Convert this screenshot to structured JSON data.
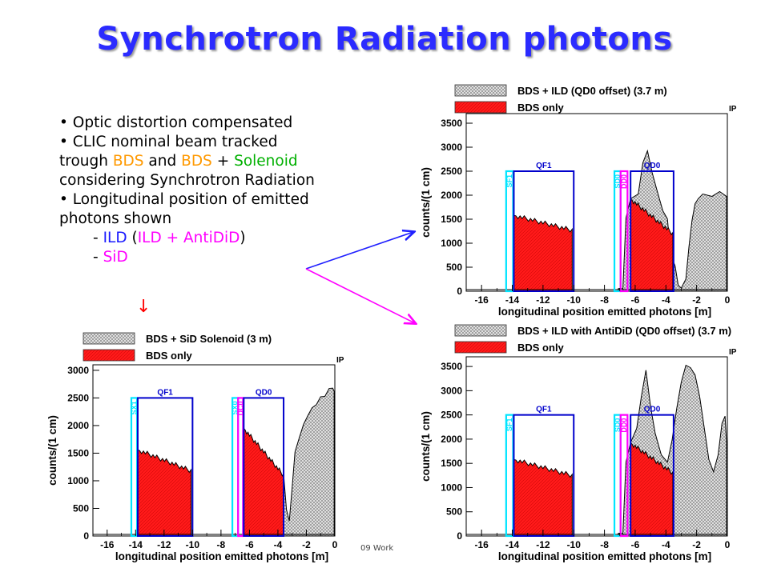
{
  "slide": {
    "title": "Synchrotron Radiation photons",
    "bullets": [
      {
        "text": "• Optic distortion compensated"
      },
      {
        "text": "• CLIC nominal beam tracked"
      },
      {
        "parts": [
          "trough ",
          "BDS",
          " and ",
          "BDS",
          " + ",
          "Solenoid"
        ]
      },
      {
        "text": "considering Synchrotron Radiation"
      },
      {
        "text": "• Longitudinal position of emitted"
      },
      {
        "text": "photons shown"
      },
      {
        "parts": [
          "- ",
          "ILD",
          " (",
          "ILD + AntiDiD",
          ")"
        ]
      },
      {
        "parts": [
          "- ",
          "SiD"
        ]
      }
    ],
    "down_arrow": "↓",
    "footer_fragment": "09 Work",
    "colors": {
      "title": "#2b2bff",
      "bds": "#ff9900",
      "solenoid": "#00b000",
      "ild": "#1a1aff",
      "antidid": "#ff00ff",
      "sid": "#ff00ff",
      "arrow_top": "#2020ff",
      "arrow_bottom": "#ff00ff",
      "hist_red": "#ff1a1a",
      "magnet_cyan": "#00e5ff",
      "magnet_blue": "#0000cc",
      "dd_magenta": "#ff00ff"
    }
  },
  "chart_data": [
    {
      "type": "histogram",
      "legend": [
        "BDS + ILD (QD0 offset) (3.7 m)",
        "BDS only"
      ],
      "xlabel": "longitudinal position emitted photons [m]",
      "ylabel": "counts/(1 cm)",
      "corner_label": "IP",
      "xlim": [
        -17,
        0
      ],
      "ylim": [
        0,
        3700
      ],
      "xticks": [
        -16,
        -14,
        -12,
        -10,
        -8,
        -6,
        -4,
        -2,
        0
      ],
      "yticks": [
        0,
        500,
        1000,
        1500,
        2000,
        2500,
        3000,
        3500
      ],
      "magnets": [
        {
          "name": "SF1",
          "x": [
            -14.4,
            -13.95
          ],
          "h": 2500,
          "style": "cyan"
        },
        {
          "name": "QF1",
          "x": [
            -13.9,
            -10.0
          ],
          "h": 2500,
          "style": "blue"
        },
        {
          "name": "SD0",
          "x": [
            -7.35,
            -6.95
          ],
          "h": 2500,
          "style": "cyan"
        },
        {
          "name": "DD0",
          "x": [
            -6.95,
            -6.5
          ],
          "h": 2500,
          "style": "magenta"
        },
        {
          "name": "QD0",
          "x": [
            -6.3,
            -3.5
          ],
          "h": 2500,
          "style": "blue"
        }
      ],
      "series": [
        {
          "name": "BDS only",
          "segments": [
            [
              [
                -13.9,
                1580
              ],
              [
                -10.1,
                1270
              ]
            ],
            [
              [
                -6.3,
                1920
              ],
              [
                -3.55,
                1200
              ]
            ]
          ]
        },
        {
          "name": "BDS + ILD (QD0 offset) (3.7 m)",
          "envelope": [
            [
              -7.1,
              30
            ],
            [
              -6.8,
              80
            ],
            [
              -6.6,
              1500
            ],
            [
              -6.3,
              1950
            ],
            [
              -5.8,
              2000
            ],
            [
              -5.5,
              2700
            ],
            [
              -5.2,
              2900
            ],
            [
              -4.9,
              2500
            ],
            [
              -4.6,
              2100
            ],
            [
              -4.2,
              1700
            ],
            [
              -3.9,
              1480
            ],
            [
              -3.7,
              800
            ],
            [
              -3.4,
              500
            ],
            [
              -3.2,
              150
            ],
            [
              -3.0,
              40
            ],
            [
              -2.7,
              280
            ],
            [
              -2.5,
              900
            ],
            [
              -2.3,
              1500
            ],
            [
              -2.1,
              1800
            ],
            [
              -1.9,
              1950
            ],
            [
              -1.6,
              2000
            ],
            [
              -1.0,
              2000
            ],
            [
              -0.5,
              2050
            ],
            [
              -0.05,
              2000
            ]
          ]
        }
      ]
    },
    {
      "type": "histogram",
      "legend": [
        "BDS + ILD with AntiDiD (QD0 offset) (3.7 m)",
        "BDS only"
      ],
      "xlabel": "longitudinal position emitted photons [m]",
      "ylabel": "counts/(1 cm)",
      "corner_label": "IP",
      "xlim": [
        -17,
        0
      ],
      "ylim": [
        0,
        3700
      ],
      "xticks": [
        -16,
        -14,
        -12,
        -10,
        -8,
        -6,
        -4,
        -2,
        0
      ],
      "yticks": [
        0,
        500,
        1000,
        1500,
        2000,
        2500,
        3000,
        3500
      ],
      "magnets": [
        {
          "name": "SF1",
          "x": [
            -14.4,
            -13.95
          ],
          "h": 2500,
          "style": "cyan"
        },
        {
          "name": "QF1",
          "x": [
            -13.9,
            -10.0
          ],
          "h": 2500,
          "style": "blue"
        },
        {
          "name": "SD0",
          "x": [
            -7.35,
            -6.95
          ],
          "h": 2500,
          "style": "cyan"
        },
        {
          "name": "DD0",
          "x": [
            -6.95,
            -6.5
          ],
          "h": 2500,
          "style": "magenta"
        },
        {
          "name": "QD0",
          "x": [
            -6.3,
            -3.5
          ],
          "h": 2500,
          "style": "blue"
        }
      ],
      "series": [
        {
          "name": "BDS only",
          "segments": [
            [
              [
                -13.9,
                1580
              ],
              [
                -10.1,
                1250
              ]
            ],
            [
              [
                -6.3,
                1920
              ],
              [
                -3.55,
                1300
              ]
            ]
          ]
        },
        {
          "name": "BDS + ILD with AntiDiD (QD0 offset) (3.7 m)",
          "envelope": [
            [
              -7.1,
              30
            ],
            [
              -6.8,
              80
            ],
            [
              -6.6,
              1500
            ],
            [
              -6.3,
              1950
            ],
            [
              -5.9,
              2200
            ],
            [
              -5.6,
              2900
            ],
            [
              -5.3,
              3400
            ],
            [
              -5.0,
              2700
            ],
            [
              -4.7,
              2100
            ],
            [
              -4.3,
              1700
            ],
            [
              -3.9,
              1500
            ],
            [
              -3.6,
              2000
            ],
            [
              -3.3,
              2600
            ],
            [
              -3.0,
              3200
            ],
            [
              -2.7,
              3500
            ],
            [
              -2.4,
              3500
            ],
            [
              -2.1,
              3300
            ],
            [
              -1.8,
              2900
            ],
            [
              -1.5,
              2200
            ],
            [
              -1.2,
              1600
            ],
            [
              -0.9,
              1300
            ],
            [
              -0.6,
              1700
            ],
            [
              -0.35,
              2300
            ],
            [
              -0.15,
              2500
            ],
            [
              -0.05,
              1900
            ]
          ]
        }
      ]
    },
    {
      "type": "histogram",
      "legend": [
        "BDS + SiD Solenoid (3 m)",
        "BDS only"
      ],
      "xlabel": "longitudinal position emitted photons [m]",
      "ylabel": "counts/(1 cm)",
      "corner_label": "IP",
      "xlim": [
        -17,
        0
      ],
      "ylim": [
        0,
        3100
      ],
      "xticks": [
        -16,
        -14,
        -12,
        -10,
        -8,
        -6,
        -4,
        -2,
        0
      ],
      "yticks": [
        0,
        500,
        1000,
        1500,
        2000,
        2500,
        3000
      ],
      "magnets": [
        {
          "name": "SX1",
          "x": [
            -14.3,
            -13.9
          ],
          "h": 2500,
          "style": "cyan"
        },
        {
          "name": "QF1",
          "x": [
            -13.85,
            -10.0
          ],
          "h": 2500,
          "style": "blue"
        },
        {
          "name": "SX0",
          "x": [
            -7.2,
            -6.8
          ],
          "h": 2500,
          "style": "cyan"
        },
        {
          "name": "DC0",
          "x": [
            -6.8,
            -6.45
          ],
          "h": 2500,
          "style": "magenta"
        },
        {
          "name": "QD0",
          "x": [
            -6.4,
            -3.6
          ],
          "h": 2500,
          "style": "blue"
        }
      ],
      "series": [
        {
          "name": "BDS only",
          "segments": [
            [
              [
                -13.85,
                1560
              ],
              [
                -10.1,
                1180
              ]
            ],
            [
              [
                -6.4,
                1950
              ],
              [
                -3.6,
                1100
              ]
            ]
          ]
        },
        {
          "name": "BDS + SiD Solenoid (3 m)",
          "envelope": [
            [
              -3.6,
              1100
            ],
            [
              -3.4,
              500
            ],
            [
              -3.2,
              250
            ],
            [
              -3.0,
              900
            ],
            [
              -2.8,
              1500
            ],
            [
              -2.5,
              1800
            ],
            [
              -2.2,
              2000
            ],
            [
              -1.9,
              2200
            ],
            [
              -1.6,
              2300
            ],
            [
              -1.3,
              2400
            ],
            [
              -1.0,
              2500
            ],
            [
              -0.7,
              2550
            ],
            [
              -0.4,
              2650
            ],
            [
              -0.15,
              2700
            ],
            [
              -0.05,
              2600
            ]
          ]
        }
      ]
    }
  ]
}
